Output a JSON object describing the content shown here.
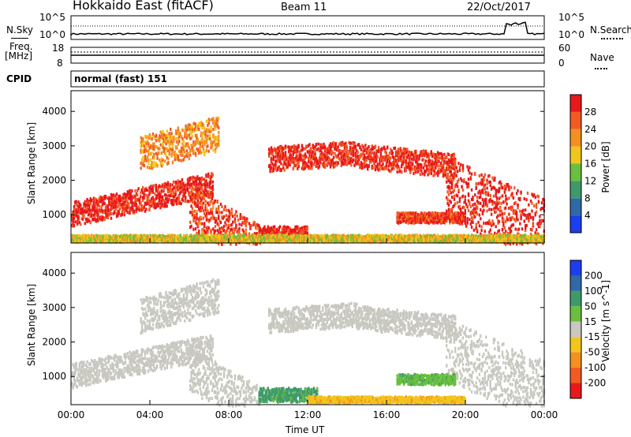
{
  "header": {
    "station": "Hokkaido East (fitACF)",
    "beam": "Beam 11",
    "date": "22/Oct/2017"
  },
  "panels": {
    "nsky_label": "N.Sky",
    "nsearch_label": "N.Search",
    "freq_label": "Freq.",
    "freq_unit": "[MHz]",
    "nave_label": "Nave",
    "cpid_label": "CPID",
    "cpid_value": "normal (fast) 151",
    "noise_ticks_left": [
      "10^5",
      "10^0"
    ],
    "noise_ticks_right": [
      "10^5",
      "10^0"
    ],
    "freq_ticks_left": [
      "18",
      "8"
    ],
    "nave_ticks_right": [
      "60",
      "0"
    ]
  },
  "chart_data": [
    {
      "type": "heatmap",
      "name": "power",
      "ylabel": "Slant Range [km]",
      "y_ticks": [
        1000,
        2000,
        3000,
        4000
      ],
      "ylim": [
        180,
        4600
      ],
      "xlim": [
        0,
        24
      ],
      "colorbar_label": "Power [dB]",
      "colorbar_ticks": [
        4,
        8,
        12,
        16,
        20,
        24,
        28
      ],
      "colorbar_colors": [
        "#1d3df0",
        "#2f6aa6",
        "#3f9a6a",
        "#6abf3e",
        "#f2c51d",
        "#f5901f",
        "#f15a22",
        "#e8181b"
      ],
      "echo_bands": [
        {
          "x0": 0,
          "x1": 7.2,
          "y0": 700,
          "y1": 1400,
          "slope": 120,
          "level": 30
        },
        {
          "x0": 6.0,
          "x1": 9.6,
          "y0": 600,
          "y1": 1900,
          "slope": -330,
          "level": 28
        },
        {
          "x0": 9.5,
          "x1": 12.0,
          "y0": 300,
          "y1": 700,
          "slope": 0,
          "level": 30
        },
        {
          "x0": 10.0,
          "x1": 14.5,
          "y0": 2300,
          "y1": 3000,
          "slope": 40,
          "level": 29
        },
        {
          "x0": 14.5,
          "x1": 19.5,
          "y0": 2400,
          "y1": 3100,
          "slope": -60,
          "level": 29
        },
        {
          "x0": 19.0,
          "x1": 24.0,
          "y0": 900,
          "y1": 2700,
          "slope": -240,
          "level": 30
        },
        {
          "x0": 16.5,
          "x1": 20.0,
          "y0": 800,
          "y1": 1100,
          "slope": 0,
          "level": 28
        },
        {
          "x0": 3.5,
          "x1": 7.5,
          "y0": 2300,
          "y1": 3300,
          "slope": 150,
          "level": 22
        },
        {
          "x0": 0,
          "x1": 24,
          "y0": 250,
          "y1": 450,
          "slope": 0,
          "level": 18
        }
      ]
    },
    {
      "type": "heatmap",
      "name": "velocity",
      "ylabel": "Slant Range [km]",
      "xlabel": "Time UT",
      "y_ticks": [
        1000,
        2000,
        3000,
        4000
      ],
      "ylim": [
        180,
        4600
      ],
      "xlim": [
        0,
        24
      ],
      "x_ticks": [
        "00:00",
        "04:00",
        "08:00",
        "12:00",
        "16:00",
        "20:00",
        "00:00"
      ],
      "colorbar_label": "Velocity [m s^-1]",
      "colorbar_ticks": [
        200,
        100,
        50,
        15,
        -15,
        -50,
        -100,
        -200
      ],
      "colorbar_colors": [
        "#1d3df0",
        "#2f6aa6",
        "#3f9a6a",
        "#6abf3e",
        "#c8c8c0",
        "#f2c51d",
        "#f5901f",
        "#f15a22",
        "#e8181b"
      ],
      "echo_bands": [
        {
          "x0": 0,
          "x1": 7.2,
          "y0": 700,
          "y1": 1400,
          "slope": 120,
          "level": 0
        },
        {
          "x0": 6.0,
          "x1": 9.6,
          "y0": 600,
          "y1": 1900,
          "slope": -330,
          "level": 0
        },
        {
          "x0": 10.0,
          "x1": 14.5,
          "y0": 2300,
          "y1": 3000,
          "slope": 40,
          "level": 0
        },
        {
          "x0": 14.5,
          "x1": 19.5,
          "y0": 2400,
          "y1": 3100,
          "slope": -60,
          "level": 0
        },
        {
          "x0": 19.0,
          "x1": 24.0,
          "y0": 900,
          "y1": 2700,
          "slope": -240,
          "level": 0
        },
        {
          "x0": 9.5,
          "x1": 12.5,
          "y0": 300,
          "y1": 700,
          "slope": 0,
          "level": 60
        },
        {
          "x0": 12.0,
          "x1": 20.0,
          "y0": 280,
          "y1": 450,
          "slope": 0,
          "level": -40
        },
        {
          "x0": 16.5,
          "x1": 19.5,
          "y0": 800,
          "y1": 1100,
          "slope": 0,
          "level": 40
        },
        {
          "x0": 3.5,
          "x1": 7.5,
          "y0": 2300,
          "y1": 3300,
          "slope": 150,
          "level": 0
        }
      ]
    }
  ]
}
